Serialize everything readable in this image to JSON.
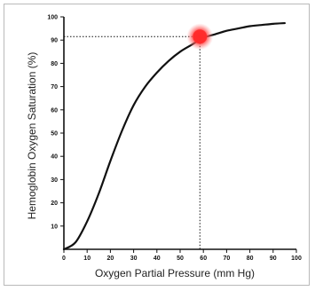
{
  "chart_data": {
    "type": "line",
    "title": "",
    "xlabel": "Oxygen Partial Pressure (mm Hg)",
    "ylabel": "Hemoglobin Oxygen Saturation (%)",
    "xlim": [
      0,
      100
    ],
    "ylim": [
      0,
      100
    ],
    "x_ticks": [
      "0",
      "10",
      "20",
      "30",
      "40",
      "50",
      "60",
      "70",
      "80",
      "90",
      "100"
    ],
    "y_ticks": [
      "10",
      "20",
      "30",
      "40",
      "50",
      "60",
      "70",
      "80",
      "90",
      "100"
    ],
    "grid": false,
    "series": [
      {
        "x": [
          0,
          5,
          10,
          15,
          20,
          25,
          30,
          35,
          40,
          45,
          50,
          55,
          60,
          65,
          70,
          75,
          80,
          85,
          90,
          95
        ],
        "y": [
          0,
          3,
          12,
          24,
          38,
          51,
          62,
          70,
          76,
          81,
          85,
          88,
          91,
          92.5,
          94,
          95,
          96,
          96.5,
          97,
          97.3
        ]
      }
    ],
    "highlight": {
      "x": 58.5,
      "y": 91.5,
      "color": "#ff2a2a"
    },
    "reference_lines": {
      "x": 58.5,
      "y": 91.5,
      "style": "dotted"
    },
    "colors": {
      "curve": "#111111",
      "axes": "#111111"
    }
  }
}
